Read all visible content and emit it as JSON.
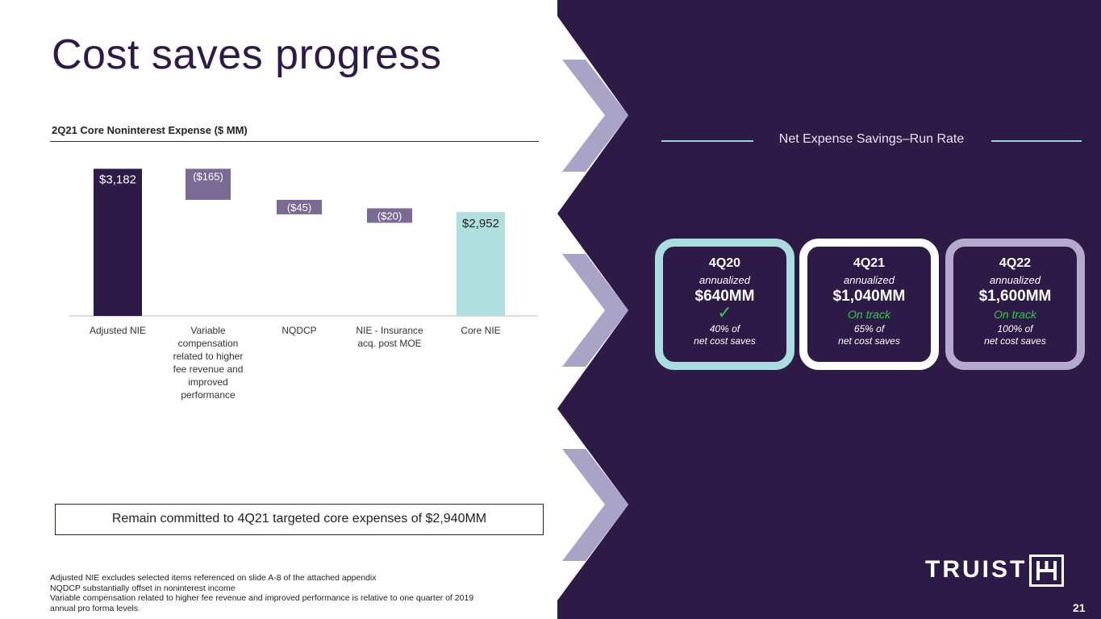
{
  "title": "Cost saves progress",
  "chart_heading": "2Q21 Core Noninterest Expense ($ MM)",
  "chart_data": {
    "type": "waterfall",
    "categories": [
      "Adjusted NIE",
      "Variable compensation related to higher fee revenue and improved performance",
      "NQDCP",
      "NIE - Insurance acq. post MOE",
      "Core NIE"
    ],
    "category_lines": [
      [
        "Adjusted NIE"
      ],
      [
        "Variable",
        "compensation",
        "related to higher",
        "fee revenue and",
        "improved",
        "performance"
      ],
      [
        "NQDCP"
      ],
      [
        "NIE - Insurance",
        "acq. post MOE"
      ],
      [
        "Core NIE"
      ]
    ],
    "values": [
      3182,
      -165,
      -45,
      -20,
      2952
    ],
    "data_labels": [
      "$3,182",
      "($165)",
      "($45)",
      "($20)",
      "$2,952"
    ],
    "kinds": [
      "total",
      "delta",
      "delta",
      "delta",
      "total"
    ],
    "colors": {
      "start": "#2e1a47",
      "delta": "#7b6a93",
      "end": "#b0dfe0"
    }
  },
  "callout": "Remain committed to 4Q21 targeted core expenses of $2,940MM",
  "footnotes": [
    "Adjusted NIE excludes selected items referenced on slide A-8 of the attached appendix",
    "NQDCP substantially offset in noninterest income",
    "Variable compensation related to higher fee revenue and improved performance is relative to one quarter of 2019",
    "annual pro forma levels"
  ],
  "savings": {
    "header": "Net Expense Savings–Run Rate",
    "cards": [
      {
        "period": "4Q20",
        "annualized": "annualized",
        "amount": "$640MM",
        "status": "",
        "check": "✓",
        "pct_line1": "40% of",
        "pct_line2": "net cost saves",
        "border": "#a9dde0"
      },
      {
        "period": "4Q21",
        "annualized": "annualized",
        "amount": "$1,040MM",
        "status": "On track",
        "check": "",
        "pct_line1": "65% of",
        "pct_line2": "net cost saves",
        "border": "#ffffff"
      },
      {
        "period": "4Q22",
        "annualized": "annualized",
        "amount": "$1,600MM",
        "status": "On track",
        "check": "",
        "pct_line1": "100% of",
        "pct_line2": "net cost saves",
        "border": "#b3aacd"
      }
    ]
  },
  "brand": {
    "logo_text": "TRUIST",
    "panel_color": "#2e1a47",
    "chevron_color": "#aaa3c8"
  },
  "page_number": "21"
}
